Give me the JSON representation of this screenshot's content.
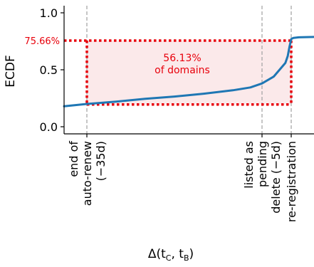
{
  "chart_data": {
    "type": "line",
    "title": "",
    "xlabel_main": "Δ(t",
    "xlabel_sub1": "C",
    "xlabel_mid": ", t",
    "xlabel_sub2": "B",
    "xlabel_end": ")",
    "ylabel": "ECDF",
    "ylim": [
      -0.04,
      1.04
    ],
    "yticks": [
      {
        "value": 0.0,
        "label": "0.0"
      },
      {
        "value": 0.5,
        "label": "0.5"
      },
      {
        "value": 1.0,
        "label": "1.0"
      }
    ],
    "xlim": [
      -35,
      3
    ],
    "event_lines": [
      {
        "x": -35,
        "label_lines": [
          "end of",
          "auto-renew",
          "(−35d)"
        ]
      },
      {
        "x": -5,
        "label_lines": [
          "listed as",
          "pending",
          "delete (−5d)"
        ]
      },
      {
        "x": 0,
        "label_lines": [
          "re-registration"
        ]
      }
    ],
    "series": [
      {
        "color": "#1f77b4",
        "x": [
          -38,
          -35,
          -30,
          -25,
          -20,
          -15,
          -10,
          -7,
          -5,
          -3,
          -2,
          -1,
          -0.6,
          -0.3,
          0,
          0.3,
          1,
          3
        ],
        "y": [
          0.18,
          0.2,
          0.22,
          0.245,
          0.265,
          0.29,
          0.32,
          0.345,
          0.38,
          0.44,
          0.5,
          0.56,
          0.62,
          0.7,
          0.77,
          0.78,
          0.785,
          0.788
        ]
      }
    ],
    "highlight": {
      "color": "#e8000b",
      "y_low": 0.1953,
      "y_high": 0.7566,
      "x_start": -35,
      "x_end": 0,
      "high_label": "75.66%",
      "text_lines": [
        "56.13%",
        "of domains"
      ]
    }
  }
}
